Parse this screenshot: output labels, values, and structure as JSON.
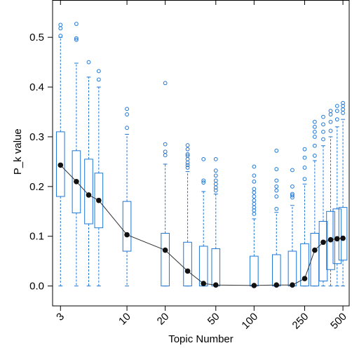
{
  "chart_data": {
    "type": "box",
    "xlabel": "Topic Number",
    "ylabel": "P_k value",
    "x_scale": "log",
    "xlim": [
      2.6,
      560
    ],
    "ylim": [
      -0.04,
      0.575
    ],
    "x_ticks": [
      3,
      10,
      20,
      50,
      100,
      250,
      500
    ],
    "x_tick_labels": [
      "3",
      "10",
      "20",
      "50",
      "100",
      "250",
      "500"
    ],
    "y_ticks": [
      0.0,
      0.1,
      0.2,
      0.3,
      0.4,
      0.5
    ],
    "y_tick_labels": [
      "0.0",
      "0.1",
      "0.2",
      "0.3",
      "0.4",
      "0.5"
    ],
    "box_color": "#1f77d4",
    "line_color": "#333333",
    "point_color": "#111111",
    "boxes": [
      {
        "x": 3,
        "q1": 0.18,
        "median": 0.243,
        "q3": 0.31,
        "whisker_low": 0.0,
        "whisker_high": 0.5,
        "outliers": [
          0.503,
          0.518,
          0.525
        ]
      },
      {
        "x": 4,
        "q1": 0.147,
        "median": 0.21,
        "q3": 0.272,
        "whisker_low": 0.0,
        "whisker_high": 0.448,
        "outliers": [
          0.495,
          0.498,
          0.527
        ]
      },
      {
        "x": 5,
        "q1": 0.125,
        "median": 0.183,
        "q3": 0.255,
        "whisker_low": 0.0,
        "whisker_high": 0.42,
        "outliers": [
          0.45
        ]
      },
      {
        "x": 6,
        "q1": 0.117,
        "median": 0.172,
        "q3": 0.227,
        "whisker_low": 0.0,
        "whisker_high": 0.4,
        "outliers": [
          0.415,
          0.432
        ]
      },
      {
        "x": 10,
        "q1": 0.07,
        "median": 0.103,
        "q3": 0.17,
        "whisker_low": 0.0,
        "whisker_high": 0.305,
        "outliers": [
          0.318,
          0.345,
          0.356
        ]
      },
      {
        "x": 20,
        "q1": 0.0,
        "median": 0.072,
        "q3": 0.106,
        "whisker_low": 0.0,
        "whisker_high": 0.245,
        "outliers": [
          0.263,
          0.27,
          0.285,
          0.408
        ]
      },
      {
        "x": 30,
        "q1": 0.0,
        "median": 0.03,
        "q3": 0.088,
        "whisker_low": 0.0,
        "whisker_high": 0.23,
        "outliers": [
          0.238,
          0.243,
          0.248,
          0.255,
          0.262,
          0.265,
          0.275,
          0.283
        ]
      },
      {
        "x": 40,
        "q1": 0.0,
        "median": 0.005,
        "q3": 0.08,
        "whisker_low": 0.0,
        "whisker_high": 0.19,
        "outliers": [
          0.208,
          0.212,
          0.255
        ]
      },
      {
        "x": 50,
        "q1": 0.0,
        "median": 0.002,
        "q3": 0.075,
        "whisker_low": 0.0,
        "whisker_high": 0.185,
        "outliers": [
          0.192,
          0.198,
          0.205,
          0.212,
          0.222,
          0.232,
          0.255
        ]
      },
      {
        "x": 100,
        "q1": 0.0,
        "median": 0.001,
        "q3": 0.06,
        "whisker_low": 0.0,
        "whisker_high": 0.135,
        "outliers": [
          0.145,
          0.152,
          0.158,
          0.165,
          0.172,
          0.18,
          0.188,
          0.195,
          0.21,
          0.222,
          0.24
        ]
      },
      {
        "x": 150,
        "q1": 0.0,
        "median": 0.002,
        "q3": 0.063,
        "whisker_low": 0.0,
        "whisker_high": 0.148,
        "outliers": [
          0.155,
          0.18,
          0.192,
          0.2,
          0.212,
          0.235,
          0.272
        ]
      },
      {
        "x": 200,
        "q1": 0.0,
        "median": 0.002,
        "q3": 0.07,
        "whisker_low": 0.0,
        "whisker_high": 0.162,
        "outliers": [
          0.178,
          0.182,
          0.185,
          0.2,
          0.233
        ]
      },
      {
        "x": 250,
        "q1": 0.0,
        "median": 0.015,
        "q3": 0.085,
        "whisker_low": 0.0,
        "whisker_high": 0.205,
        "outliers": [
          0.215,
          0.238,
          0.258,
          0.275
        ]
      },
      {
        "x": 300,
        "q1": 0.0,
        "median": 0.072,
        "q3": 0.106,
        "whisker_low": 0.0,
        "whisker_high": 0.252,
        "outliers": [
          0.262,
          0.282,
          0.3,
          0.31,
          0.32,
          0.33
        ]
      },
      {
        "x": 350,
        "q1": 0.01,
        "median": 0.088,
        "q3": 0.13,
        "whisker_low": 0.0,
        "whisker_high": 0.282,
        "outliers": [
          0.295,
          0.31,
          0.325,
          0.34
        ]
      },
      {
        "x": 400,
        "q1": 0.033,
        "median": 0.093,
        "q3": 0.15,
        "whisker_low": 0.0,
        "whisker_high": 0.3,
        "outliers": [
          0.312,
          0.33,
          0.345,
          0.352
        ]
      },
      {
        "x": 450,
        "q1": 0.045,
        "median": 0.095,
        "q3": 0.155,
        "whisker_low": 0.0,
        "whisker_high": 0.32,
        "outliers": [
          0.335,
          0.352,
          0.362
        ]
      },
      {
        "x": 500,
        "q1": 0.052,
        "median": 0.096,
        "q3": 0.158,
        "whisker_low": 0.0,
        "whisker_high": 0.335,
        "outliers": [
          0.348,
          0.355,
          0.362,
          0.368
        ]
      }
    ]
  }
}
